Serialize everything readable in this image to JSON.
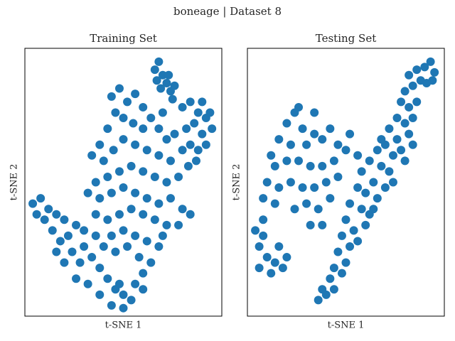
{
  "title": "boneage | Dataset 8",
  "chart_data": [
    {
      "type": "scatter",
      "title": "Training Set",
      "x_label": "t-SNE 1",
      "y_label": "t-SNE 2",
      "color": "#1f77b4",
      "xlim": [
        0,
        100
      ],
      "ylim": [
        0,
        100
      ],
      "x": [
        66,
        68,
        70,
        72,
        74,
        75,
        67,
        69,
        73,
        76,
        80,
        84,
        88,
        92,
        95,
        90,
        86,
        82,
        84,
        88,
        92,
        80,
        83,
        87,
        94,
        90,
        44,
        48,
        52,
        56,
        60,
        46,
        50,
        55,
        60,
        64,
        68,
        72,
        76,
        70,
        42,
        38,
        34,
        40,
        45,
        50,
        56,
        62,
        68,
        74,
        78,
        72,
        66,
        60,
        54,
        48,
        42,
        36,
        32,
        38,
        44,
        50,
        56,
        62,
        68,
        74,
        80,
        84,
        78,
        72,
        66,
        60,
        54,
        48,
        42,
        36,
        4,
        8,
        12,
        16,
        20,
        10,
        6,
        14,
        18,
        22,
        26,
        30,
        24,
        28,
        16,
        20,
        30,
        34,
        38,
        42,
        46,
        50,
        54,
        48,
        56,
        60,
        64,
        58,
        52,
        46,
        40,
        36,
        44,
        50,
        56,
        62,
        68,
        70,
        26,
        32,
        38,
        44,
        50,
        60
      ],
      "y": [
        92,
        95,
        90,
        87,
        84,
        81,
        88,
        85,
        90,
        86,
        78,
        80,
        76,
        74,
        70,
        68,
        72,
        70,
        64,
        62,
        64,
        62,
        56,
        58,
        76,
        80,
        82,
        85,
        80,
        83,
        78,
        76,
        74,
        72,
        70,
        74,
        70,
        66,
        68,
        76,
        70,
        64,
        60,
        58,
        62,
        66,
        64,
        62,
        60,
        58,
        52,
        50,
        52,
        54,
        56,
        54,
        52,
        50,
        46,
        44,
        46,
        48,
        46,
        44,
        42,
        44,
        40,
        38,
        34,
        34,
        36,
        38,
        40,
        38,
        36,
        38,
        42,
        44,
        40,
        38,
        36,
        36,
        38,
        32,
        28,
        30,
        34,
        32,
        24,
        20,
        24,
        20,
        26,
        22,
        18,
        14,
        10,
        8,
        6,
        12,
        12,
        16,
        20,
        22,
        26,
        24,
        26,
        30,
        30,
        32,
        30,
        28,
        26,
        30,
        14,
        12,
        8,
        4,
        3,
        10
      ]
    },
    {
      "type": "scatter",
      "title": "Testing Set",
      "x_label": "t-SNE 1",
      "y_label": "t-SNE 2",
      "color": "#1f77b4",
      "xlim": [
        0,
        100
      ],
      "ylim": [
        0,
        100
      ],
      "x": [
        82,
        86,
        90,
        93,
        95,
        88,
        84,
        91,
        94,
        80,
        78,
        82,
        86,
        76,
        80,
        84,
        72,
        76,
        82,
        70,
        74,
        78,
        66,
        62,
        68,
        72,
        58,
        64,
        70,
        60,
        56,
        66,
        52,
        58,
        62,
        50,
        54,
        60,
        48,
        52,
        46,
        50,
        44,
        42,
        38,
        36,
        40,
        44,
        48,
        56,
        64,
        74,
        80,
        84,
        68,
        56,
        20,
        24,
        28,
        16,
        22,
        30,
        34,
        38,
        42,
        46,
        50,
        44,
        38,
        32,
        26,
        20,
        14,
        10,
        16,
        22,
        28,
        34,
        40,
        46,
        30,
        36,
        42,
        24,
        8,
        14,
        38,
        32,
        26,
        34,
        52,
        12,
        4,
        8,
        6,
        10,
        14,
        18,
        12,
        6,
        16,
        20,
        8
      ],
      "y": [
        90,
        92,
        93,
        95,
        91,
        88,
        86,
        87,
        88,
        84,
        80,
        78,
        80,
        74,
        72,
        74,
        70,
        66,
        68,
        64,
        60,
        62,
        62,
        58,
        56,
        54,
        54,
        50,
        48,
        46,
        48,
        44,
        42,
        40,
        38,
        36,
        32,
        34,
        30,
        26,
        24,
        20,
        18,
        14,
        10,
        6,
        8,
        10,
        16,
        28,
        40,
        50,
        58,
        64,
        66,
        60,
        72,
        76,
        70,
        66,
        64,
        64,
        68,
        66,
        70,
        64,
        62,
        58,
        56,
        56,
        58,
        58,
        56,
        50,
        48,
        50,
        48,
        48,
        50,
        52,
        42,
        40,
        44,
        40,
        44,
        42,
        34,
        34,
        78,
        76,
        68,
        60,
        32,
        30,
        26,
        22,
        20,
        18,
        16,
        18,
        26,
        22,
        36
      ]
    }
  ]
}
